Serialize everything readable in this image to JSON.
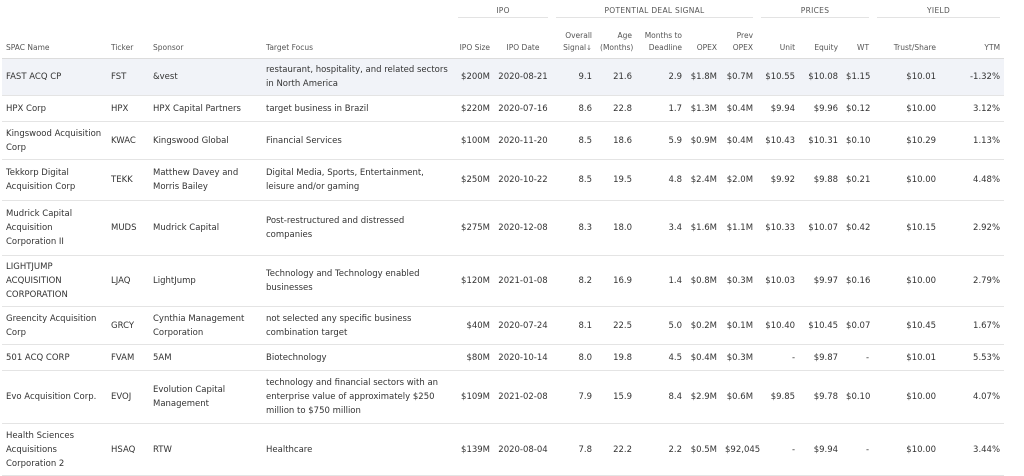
{
  "groups": {
    "ipo": "IPO",
    "signal": "POTENTIAL DEAL SIGNAL",
    "prices": "PRICES",
    "yield": "YIELD"
  },
  "columns": {
    "spac_name": "SPAC Name",
    "ticker": "Ticker",
    "sponsor": "Sponsor",
    "target_focus": "Target Focus",
    "ipo_size": "IPO Size",
    "ipo_date": "IPO Date",
    "overall_signal": "Overall Signal",
    "age": "Age (Months)",
    "months_to_deadline": "Months to Deadline",
    "opex": "OPEX",
    "prev_opex": "Prev OPEX",
    "unit": "Unit",
    "equity": "Equity",
    "wt": "WT",
    "trust_share": "Trust/Share",
    "ytm": "YTM"
  },
  "rows": [
    {
      "name": "FAST ACQ CP",
      "ticker": "FST",
      "sponsor": "&vest",
      "focus": "restaurant, hospitality, and related sectors in North America",
      "ipo_size": "$200M",
      "ipo_date": "2020-08-21",
      "signal": "9.1",
      "age": "21.6",
      "deadline": "2.9",
      "opex": "$1.8M",
      "prev_opex": "$0.7M",
      "unit": "$10.55",
      "equity": "$10.08",
      "wt": "$1.15",
      "trust": "$10.01",
      "ytm": "-1.32%"
    },
    {
      "name": "HPX Corp",
      "ticker": "HPX",
      "sponsor": "HPX Capital Partners",
      "focus": "target business in Brazil",
      "ipo_size": "$220M",
      "ipo_date": "2020-07-16",
      "signal": "8.6",
      "age": "22.8",
      "deadline": "1.7",
      "opex": "$1.3M",
      "prev_opex": "$0.4M",
      "unit": "$9.94",
      "equity": "$9.96",
      "wt": "$0.12",
      "trust": "$10.00",
      "ytm": "3.12%"
    },
    {
      "name": "Kingswood Acquisition Corp",
      "ticker": "KWAC",
      "sponsor": "Kingswood Global",
      "focus": "Financial Services",
      "ipo_size": "$100M",
      "ipo_date": "2020-11-20",
      "signal": "8.5",
      "age": "18.6",
      "deadline": "5.9",
      "opex": "$0.9M",
      "prev_opex": "$0.4M",
      "unit": "$10.43",
      "equity": "$10.31",
      "wt": "$0.10",
      "trust": "$10.29",
      "ytm": "1.13%"
    },
    {
      "name": "Tekkorp Digital Acquisition Corp",
      "ticker": "TEKK",
      "sponsor": "Matthew Davey and Morris Bailey",
      "focus": "Digital Media, Sports, Entertainment, leisure and/or gaming",
      "ipo_size": "$250M",
      "ipo_date": "2020-10-22",
      "signal": "8.5",
      "age": "19.5",
      "deadline": "4.8",
      "opex": "$2.4M",
      "prev_opex": "$2.0M",
      "unit": "$9.92",
      "equity": "$9.88",
      "wt": "$0.21",
      "trust": "$10.00",
      "ytm": "4.48%"
    },
    {
      "name": "Mudrick Capital Acquisition Corporation II",
      "ticker": "MUDS",
      "sponsor": "Mudrick Capital",
      "focus": "Post-restructured and distressed companies",
      "ipo_size": "$275M",
      "ipo_date": "2020-12-08",
      "signal": "8.3",
      "age": "18.0",
      "deadline": "3.4",
      "opex": "$1.6M",
      "prev_opex": "$1.1M",
      "unit": "$10.33",
      "equity": "$10.07",
      "wt": "$0.42",
      "trust": "$10.15",
      "ytm": "2.92%"
    },
    {
      "name": "LIGHTJUMP ACQUISITION CORPORATION",
      "ticker": "LJAQ",
      "sponsor": "LightJump",
      "focus": "Technology and Technology enabled businesses",
      "ipo_size": "$120M",
      "ipo_date": "2021-01-08",
      "signal": "8.2",
      "age": "16.9",
      "deadline": "1.4",
      "opex": "$0.8M",
      "prev_opex": "$0.3M",
      "unit": "$10.03",
      "equity": "$9.97",
      "wt": "$0.16",
      "trust": "$10.00",
      "ytm": "2.79%"
    },
    {
      "name": "Greencity Acquisition Corp",
      "ticker": "GRCY",
      "sponsor": "Cynthia Management Corporation",
      "focus": "not selected any specific business combination target",
      "ipo_size": "$40M",
      "ipo_date": "2020-07-24",
      "signal": "8.1",
      "age": "22.5",
      "deadline": "5.0",
      "opex": "$0.2M",
      "prev_opex": "$0.1M",
      "unit": "$10.40",
      "equity": "$10.45",
      "wt": "$0.07",
      "trust": "$10.45",
      "ytm": "1.67%"
    },
    {
      "name": "501 ACQ CORP",
      "ticker": "FVAM",
      "sponsor": "5AM",
      "focus": "Biotechnology",
      "ipo_size": "$80M",
      "ipo_date": "2020-10-14",
      "signal": "8.0",
      "age": "19.8",
      "deadline": "4.5",
      "opex": "$0.4M",
      "prev_opex": "$0.3M",
      "unit": "-",
      "equity": "$9.87",
      "wt": "-",
      "trust": "$10.01",
      "ytm": "5.53%"
    },
    {
      "name": "Evo Acquisition Corp.",
      "ticker": "EVOJ",
      "sponsor": "Evolution Capital Management",
      "focus": "technology and financial sectors with an enterprise value of approximately $250 million to $750 million",
      "ipo_size": "$109M",
      "ipo_date": "2021-02-08",
      "signal": "7.9",
      "age": "15.9",
      "deadline": "8.4",
      "opex": "$2.9M",
      "prev_opex": "$0.6M",
      "unit": "$9.85",
      "equity": "$9.78",
      "wt": "$0.10",
      "trust": "$10.00",
      "ytm": "4.07%"
    },
    {
      "name": "Health Sciences Acquisitions Corporation 2",
      "ticker": "HSAQ",
      "sponsor": "RTW",
      "focus": "Healthcare",
      "ipo_size": "$139M",
      "ipo_date": "2020-08-04",
      "signal": "7.8",
      "age": "22.2",
      "deadline": "2.2",
      "opex": "$0.5M",
      "prev_opex": "$92,045",
      "unit": "-",
      "equity": "$9.94",
      "wt": "-",
      "trust": "$10.00",
      "ytm": "3.44%"
    }
  ]
}
